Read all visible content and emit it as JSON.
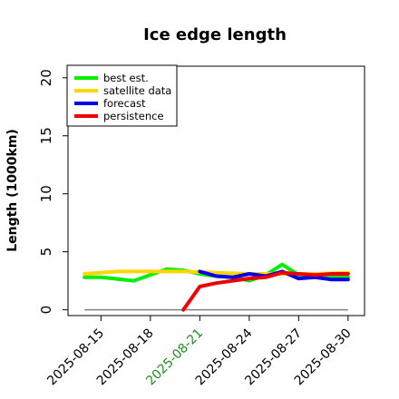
{
  "chart_data": {
    "type": "line",
    "title": "Ice edge length",
    "xlabel": "",
    "ylabel": "Length (1000km)",
    "ylim": [
      -0.5,
      21
    ],
    "xlim": [
      "2025-08-13",
      "2025-08-31"
    ],
    "yticks": [
      0,
      5,
      10,
      15,
      20
    ],
    "xticks": [
      {
        "date": "2025-08-15",
        "label": "2025-08-15",
        "color": "#000000"
      },
      {
        "date": "2025-08-18",
        "label": "2025-08-18",
        "color": "#000000"
      },
      {
        "date": "2025-08-21",
        "label": "2025-08-21",
        "color": "#228b22"
      },
      {
        "date": "2025-08-24",
        "label": "2025-08-24",
        "color": "#000000"
      },
      {
        "date": "2025-08-27",
        "label": "2025-08-27",
        "color": "#000000"
      },
      {
        "date": "2025-08-30",
        "label": "2025-08-30",
        "color": "#000000"
      }
    ],
    "legend_position": "top-left",
    "series": [
      {
        "name": "best est.",
        "color": "#00ee00",
        "points": [
          {
            "x": "2025-08-14",
            "y": 2.8
          },
          {
            "x": "2025-08-15",
            "y": 2.8
          },
          {
            "x": "2025-08-17",
            "y": 2.5
          },
          {
            "x": "2025-08-19",
            "y": 3.5
          },
          {
            "x": "2025-08-20",
            "y": 3.4
          },
          {
            "x": "2025-08-21",
            "y": 3.1
          },
          {
            "x": "2025-08-22",
            "y": 2.9
          },
          {
            "x": "2025-08-23",
            "y": 2.8
          },
          {
            "x": "2025-08-24",
            "y": 2.5
          },
          {
            "x": "2025-08-25",
            "y": 3.0
          },
          {
            "x": "2025-08-26",
            "y": 3.9
          },
          {
            "x": "2025-08-27",
            "y": 3.0
          },
          {
            "x": "2025-08-28",
            "y": 2.9
          },
          {
            "x": "2025-08-29",
            "y": 2.9
          },
          {
            "x": "2025-08-30",
            "y": 2.8
          }
        ]
      },
      {
        "name": "satellite data",
        "color": "#ffd700",
        "points": [
          {
            "x": "2025-08-14",
            "y": 3.1
          },
          {
            "x": "2025-08-16",
            "y": 3.3
          },
          {
            "x": "2025-08-18",
            "y": 3.3
          },
          {
            "x": "2025-08-20",
            "y": 3.3
          },
          {
            "x": "2025-08-22",
            "y": 3.2
          },
          {
            "x": "2025-08-24",
            "y": 3.1
          },
          {
            "x": "2025-08-26",
            "y": 3.1
          },
          {
            "x": "2025-08-28",
            "y": 3.1
          },
          {
            "x": "2025-08-30",
            "y": 3.2
          }
        ]
      },
      {
        "name": "forecast",
        "color": "#0000ee",
        "points": [
          {
            "x": "2025-08-21",
            "y": 3.3
          },
          {
            "x": "2025-08-22",
            "y": 2.9
          },
          {
            "x": "2025-08-23",
            "y": 2.8
          },
          {
            "x": "2025-08-24",
            "y": 3.1
          },
          {
            "x": "2025-08-25",
            "y": 2.9
          },
          {
            "x": "2025-08-26",
            "y": 3.3
          },
          {
            "x": "2025-08-27",
            "y": 2.7
          },
          {
            "x": "2025-08-28",
            "y": 2.8
          },
          {
            "x": "2025-08-29",
            "y": 2.6
          },
          {
            "x": "2025-08-30",
            "y": 2.6
          }
        ]
      },
      {
        "name": "persistence",
        "color": "#ee0000",
        "points": [
          {
            "x": "2025-08-20",
            "y": 0.0
          },
          {
            "x": "2025-08-21",
            "y": 2.0
          },
          {
            "x": "2025-08-22",
            "y": 2.3
          },
          {
            "x": "2025-08-23",
            "y": 2.5
          },
          {
            "x": "2025-08-24",
            "y": 2.7
          },
          {
            "x": "2025-08-25",
            "y": 2.8
          },
          {
            "x": "2025-08-26",
            "y": 3.2
          },
          {
            "x": "2025-08-27",
            "y": 3.1
          },
          {
            "x": "2025-08-28",
            "y": 3.0
          },
          {
            "x": "2025-08-29",
            "y": 3.1
          },
          {
            "x": "2025-08-30",
            "y": 3.1
          }
        ]
      }
    ],
    "baseline": {
      "y": 0,
      "color": "#808080",
      "from": "2025-08-14",
      "to": "2025-08-30"
    }
  }
}
